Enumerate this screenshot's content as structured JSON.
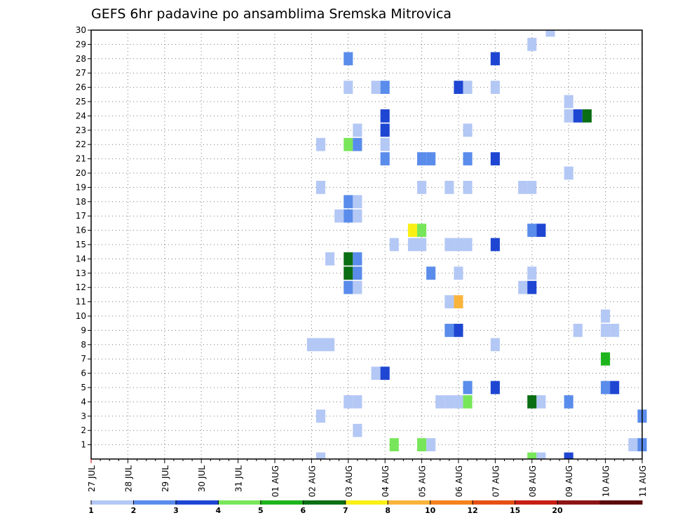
{
  "chart_data": {
    "type": "heatmap",
    "title": "GEFS 6hr padavine po ansamblima Sremska Mitrovica",
    "xlabel": "",
    "ylabel": "",
    "x_tick_labels": [
      "27 JUL",
      "28 JUL",
      "29 JUL",
      "30 JUL",
      "31 JUL",
      "01 AUG",
      "02 AUG",
      "03 AUG",
      "04 AUG",
      "05 AUG",
      "06 AUG",
      "07 AUG",
      "08 AUG",
      "09 AUG",
      "10 AUG",
      "11 AUG"
    ],
    "y_range": [
      0,
      30
    ],
    "y_ticks": [
      1,
      2,
      3,
      4,
      5,
      6,
      7,
      8,
      9,
      10,
      11,
      12,
      13,
      14,
      15,
      16,
      17,
      18,
      19,
      20,
      21,
      22,
      23,
      24,
      25,
      26,
      27,
      28,
      29,
      30
    ],
    "x_range_days": [
      0,
      15
    ],
    "time_step_hours": 6,
    "grid": "dotted",
    "legend_position": "bottom",
    "color_bins": [
      {
        "label": "1",
        "color": "#b4c8f5"
      },
      {
        "label": "2",
        "color": "#5a8ceb"
      },
      {
        "label": "3",
        "color": "#1e46d2"
      },
      {
        "label": "4",
        "color": "#78e65a"
      },
      {
        "label": "5",
        "color": "#1eb41e"
      },
      {
        "label": "6",
        "color": "#0a6e14"
      },
      {
        "label": "7",
        "color": "#faf014"
      },
      {
        "label": "8",
        "color": "#fab43c"
      },
      {
        "label": "10",
        "color": "#f5821e"
      },
      {
        "label": "12",
        "color": "#e65014"
      },
      {
        "label": "15",
        "color": "#c81e14"
      },
      {
        "label": "20",
        "color": "#8c1414"
      },
      {
        "label": "",
        "color": "#5a0a0a"
      }
    ],
    "colorbar_labels": [
      "1",
      "2",
      "3",
      "4",
      "5",
      "6",
      "7",
      "8",
      "10",
      "12",
      "15",
      "20"
    ],
    "points": [
      {
        "t": "02 AUG 00Z",
        "m": 8,
        "bin": 0
      },
      {
        "t": "02 AUG 06Z",
        "m": 8,
        "bin": 0
      },
      {
        "t": "02 AUG 06Z",
        "m": 3,
        "bin": 0
      },
      {
        "t": "02 AUG 06Z",
        "m": 0,
        "bin": 0
      },
      {
        "t": "02 AUG 06Z",
        "m": 19,
        "bin": 0
      },
      {
        "t": "02 AUG 06Z",
        "m": 22,
        "bin": 0
      },
      {
        "t": "02 AUG 12Z",
        "m": 8,
        "bin": 0
      },
      {
        "t": "02 AUG 12Z",
        "m": 14,
        "bin": 0
      },
      {
        "t": "02 AUG 18Z",
        "m": 17,
        "bin": 0
      },
      {
        "t": "03 AUG 00Z",
        "m": 28,
        "bin": 1
      },
      {
        "t": "03 AUG 00Z",
        "m": 26,
        "bin": 0
      },
      {
        "t": "03 AUG 00Z",
        "m": 22,
        "bin": 3
      },
      {
        "t": "03 AUG 00Z",
        "m": 18,
        "bin": 1
      },
      {
        "t": "03 AUG 00Z",
        "m": 17,
        "bin": 1
      },
      {
        "t": "03 AUG 00Z",
        "m": 14,
        "bin": 5
      },
      {
        "t": "03 AUG 00Z",
        "m": 13,
        "bin": 5
      },
      {
        "t": "03 AUG 00Z",
        "m": 12,
        "bin": 1
      },
      {
        "t": "03 AUG 00Z",
        "m": 4,
        "bin": 0
      },
      {
        "t": "03 AUG 06Z",
        "m": 23,
        "bin": 0
      },
      {
        "t": "03 AUG 06Z",
        "m": 22,
        "bin": 1
      },
      {
        "t": "03 AUG 06Z",
        "m": 18,
        "bin": 0
      },
      {
        "t": "03 AUG 06Z",
        "m": 17,
        "bin": 0
      },
      {
        "t": "03 AUG 06Z",
        "m": 14,
        "bin": 1
      },
      {
        "t": "03 AUG 06Z",
        "m": 13,
        "bin": 1
      },
      {
        "t": "03 AUG 06Z",
        "m": 12,
        "bin": 0
      },
      {
        "t": "03 AUG 06Z",
        "m": 4,
        "bin": 0
      },
      {
        "t": "03 AUG 06Z",
        "m": 2,
        "bin": 0
      },
      {
        "t": "03 AUG 18Z",
        "m": 26,
        "bin": 0
      },
      {
        "t": "03 AUG 18Z",
        "m": 6,
        "bin": 0
      },
      {
        "t": "04 AUG 00Z",
        "m": 26,
        "bin": 1
      },
      {
        "t": "04 AUG 00Z",
        "m": 24,
        "bin": 2
      },
      {
        "t": "04 AUG 00Z",
        "m": 23,
        "bin": 2
      },
      {
        "t": "04 AUG 00Z",
        "m": 22,
        "bin": 0
      },
      {
        "t": "04 AUG 00Z",
        "m": 21,
        "bin": 1
      },
      {
        "t": "04 AUG 00Z",
        "m": 6,
        "bin": 2
      },
      {
        "t": "04 AUG 06Z",
        "m": 15,
        "bin": 0
      },
      {
        "t": "04 AUG 06Z",
        "m": 1,
        "bin": 3
      },
      {
        "t": "04 AUG 18Z",
        "m": 15,
        "bin": 0
      },
      {
        "t": "04 AUG 18Z",
        "m": 16,
        "bin": 6
      },
      {
        "t": "05 AUG 00Z",
        "m": 21,
        "bin": 1
      },
      {
        "t": "05 AUG 00Z",
        "m": 19,
        "bin": 0
      },
      {
        "t": "05 AUG 00Z",
        "m": 16,
        "bin": 3
      },
      {
        "t": "05 AUG 00Z",
        "m": 15,
        "bin": 0
      },
      {
        "t": "05 AUG 00Z",
        "m": 1,
        "bin": 3
      },
      {
        "t": "05 AUG 06Z",
        "m": 21,
        "bin": 1
      },
      {
        "t": "05 AUG 06Z",
        "m": 13,
        "bin": 1
      },
      {
        "t": "05 AUG 06Z",
        "m": 1,
        "bin": 0
      },
      {
        "t": "05 AUG 12Z",
        "m": 4,
        "bin": 0
      },
      {
        "t": "05 AUG 18Z",
        "m": 19,
        "bin": 0
      },
      {
        "t": "05 AUG 18Z",
        "m": 15,
        "bin": 0
      },
      {
        "t": "05 AUG 18Z",
        "m": 11,
        "bin": 0
      },
      {
        "t": "05 AUG 18Z",
        "m": 9,
        "bin": 1
      },
      {
        "t": "05 AUG 18Z",
        "m": 4,
        "bin": 0
      },
      {
        "t": "06 AUG 00Z",
        "m": 26,
        "bin": 2
      },
      {
        "t": "06 AUG 00Z",
        "m": 15,
        "bin": 0
      },
      {
        "t": "06 AUG 00Z",
        "m": 13,
        "bin": 0
      },
      {
        "t": "06 AUG 00Z",
        "m": 11,
        "bin": 7
      },
      {
        "t": "06 AUG 00Z",
        "m": 9,
        "bin": 2
      },
      {
        "t": "06 AUG 00Z",
        "m": 4,
        "bin": 0
      },
      {
        "t": "06 AUG 06Z",
        "m": 26,
        "bin": 0
      },
      {
        "t": "06 AUG 06Z",
        "m": 23,
        "bin": 0
      },
      {
        "t": "06 AUG 06Z",
        "m": 21,
        "bin": 1
      },
      {
        "t": "06 AUG 06Z",
        "m": 19,
        "bin": 0
      },
      {
        "t": "06 AUG 06Z",
        "m": 15,
        "bin": 0
      },
      {
        "t": "06 AUG 06Z",
        "m": 5,
        "bin": 1
      },
      {
        "t": "06 AUG 06Z",
        "m": 4,
        "bin": 3
      },
      {
        "t": "07 AUG 00Z",
        "m": 28,
        "bin": 2
      },
      {
        "t": "07 AUG 00Z",
        "m": 26,
        "bin": 0
      },
      {
        "t": "07 AUG 00Z",
        "m": 21,
        "bin": 2
      },
      {
        "t": "07 AUG 00Z",
        "m": 15,
        "bin": 2
      },
      {
        "t": "07 AUG 00Z",
        "m": 8,
        "bin": 0
      },
      {
        "t": "07 AUG 00Z",
        "m": 5,
        "bin": 2
      },
      {
        "t": "07 AUG 18Z",
        "m": 19,
        "bin": 0
      },
      {
        "t": "07 AUG 18Z",
        "m": 12,
        "bin": 0
      },
      {
        "t": "08 AUG 00Z",
        "m": 29,
        "bin": 0
      },
      {
        "t": "08 AUG 00Z",
        "m": 19,
        "bin": 0
      },
      {
        "t": "08 AUG 00Z",
        "m": 16,
        "bin": 1
      },
      {
        "t": "08 AUG 00Z",
        "m": 13,
        "bin": 0
      },
      {
        "t": "08 AUG 00Z",
        "m": 12,
        "bin": 2
      },
      {
        "t": "08 AUG 00Z",
        "m": 4,
        "bin": 5
      },
      {
        "t": "08 AUG 00Z",
        "m": 0,
        "bin": 3
      },
      {
        "t": "08 AUG 06Z",
        "m": 16,
        "bin": 2
      },
      {
        "t": "08 AUG 06Z",
        "m": 4,
        "bin": 0
      },
      {
        "t": "08 AUG 06Z",
        "m": 0,
        "bin": 0
      },
      {
        "t": "08 AUG 12Z",
        "m": 30,
        "bin": 0
      },
      {
        "t": "09 AUG 00Z",
        "m": 25,
        "bin": 0
      },
      {
        "t": "09 AUG 00Z",
        "m": 24,
        "bin": 0
      },
      {
        "t": "09 AUG 00Z",
        "m": 20,
        "bin": 0
      },
      {
        "t": "09 AUG 00Z",
        "m": 4,
        "bin": 1
      },
      {
        "t": "09 AUG 00Z",
        "m": 0,
        "bin": 2
      },
      {
        "t": "09 AUG 06Z",
        "m": 24,
        "bin": 2
      },
      {
        "t": "09 AUG 06Z",
        "m": 9,
        "bin": 0
      },
      {
        "t": "09 AUG 12Z",
        "m": 24,
        "bin": 5
      },
      {
        "t": "10 AUG 00Z",
        "m": 10,
        "bin": 0
      },
      {
        "t": "10 AUG 00Z",
        "m": 9,
        "bin": 0
      },
      {
        "t": "10 AUG 00Z",
        "m": 7,
        "bin": 4
      },
      {
        "t": "10 AUG 00Z",
        "m": 5,
        "bin": 1
      },
      {
        "t": "10 AUG 06Z",
        "m": 9,
        "bin": 0
      },
      {
        "t": "10 AUG 06Z",
        "m": 5,
        "bin": 2
      },
      {
        "t": "10 AUG 18Z",
        "m": 1,
        "bin": 0
      },
      {
        "t": "11 AUG 00Z",
        "m": 3,
        "bin": 1
      },
      {
        "t": "11 AUG 00Z",
        "m": 1,
        "bin": 1
      }
    ]
  }
}
